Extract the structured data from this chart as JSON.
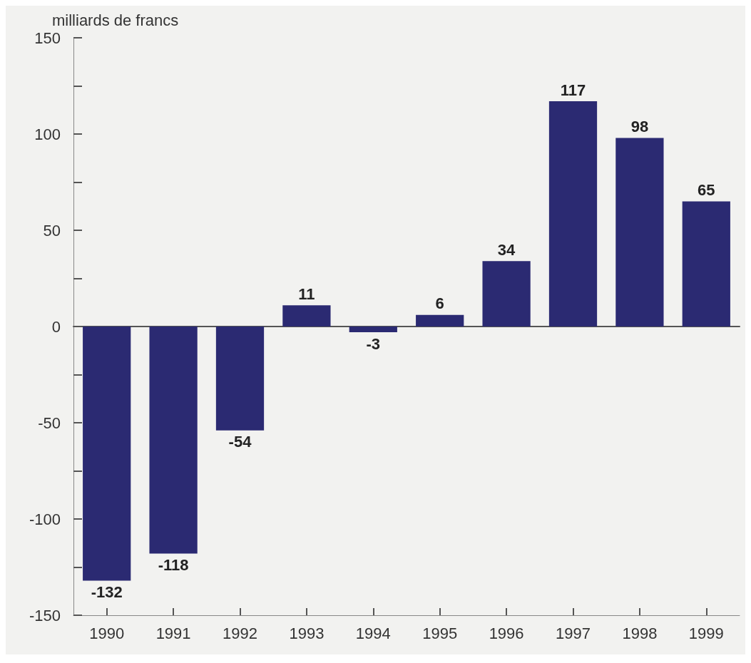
{
  "chart_data": {
    "type": "bar",
    "ylabel": "milliards de francs",
    "categories": [
      "1990",
      "1991",
      "1992",
      "1993",
      "1994",
      "1995",
      "1996",
      "1997",
      "1998",
      "1999"
    ],
    "values": [
      -132,
      -118,
      -54,
      11,
      -3,
      6,
      34,
      117,
      98,
      65
    ],
    "color": "#2b2a72",
    "ylim": [
      -150,
      150
    ],
    "yticks": [
      -150,
      {
        "value": -125,
        "label": null
      },
      -100,
      {
        "value": -75,
        "label": null
      },
      -50,
      {
        "value": -25,
        "label": null
      },
      0,
      {
        "value": 25,
        "label": null
      },
      50,
      {
        "value": 75,
        "label": null
      },
      100,
      {
        "value": 125,
        "label": null
      },
      150
    ],
    "data_labels": true
  }
}
